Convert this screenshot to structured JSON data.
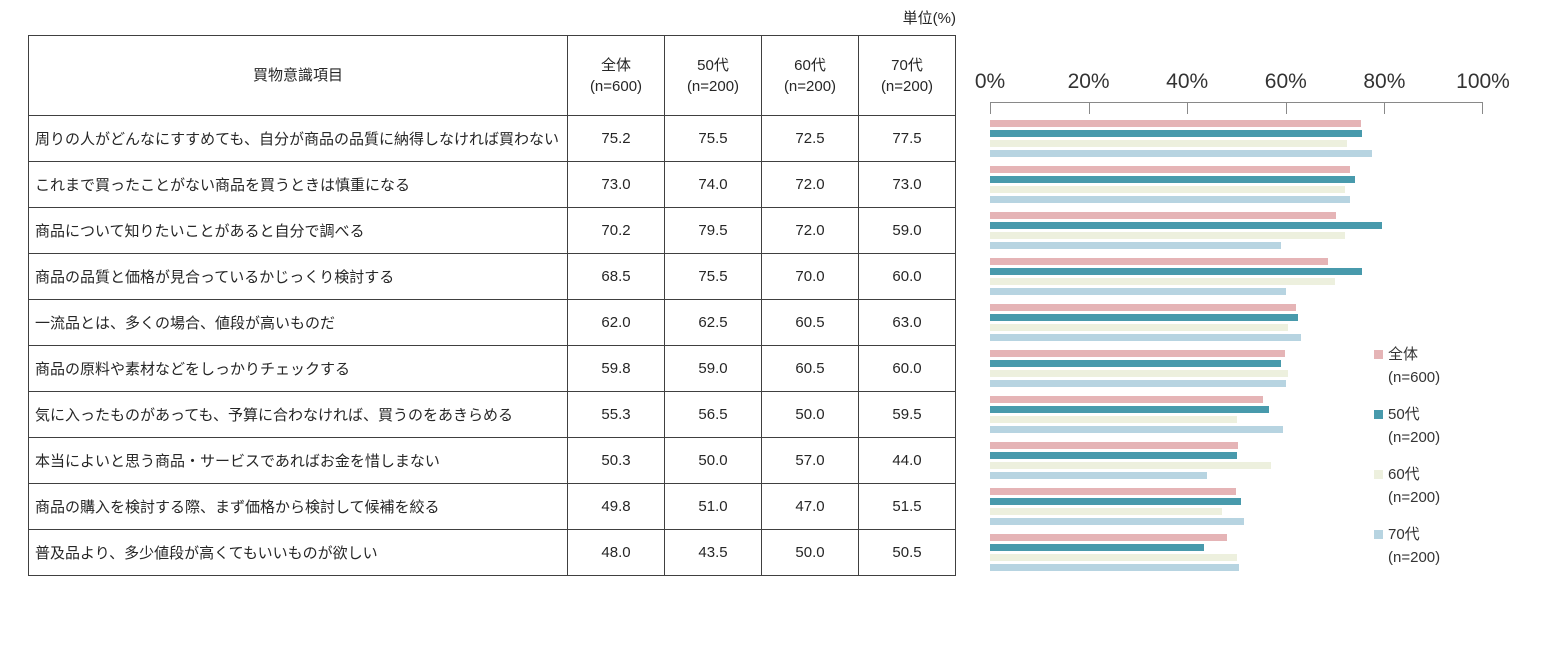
{
  "unit_label": "単位(%)",
  "table": {
    "item_header": "買物意識項目",
    "columns": [
      {
        "label": "全体",
        "n": "(n=600)"
      },
      {
        "label": "50代",
        "n": "(n=200)"
      },
      {
        "label": "60代",
        "n": "(n=200)"
      },
      {
        "label": "70代",
        "n": "(n=200)"
      }
    ],
    "rows": [
      {
        "label": "周りの人がどんなにすすめても、自分が商品の品質に納得しなければ買わない",
        "values": [
          "75.2",
          "75.5",
          "72.5",
          "77.5"
        ]
      },
      {
        "label": "これまで買ったことがない商品を買うときは慎重になる",
        "values": [
          "73.0",
          "74.0",
          "72.0",
          "73.0"
        ]
      },
      {
        "label": "商品について知りたいことがあると自分で調べる",
        "values": [
          "70.2",
          "79.5",
          "72.0",
          "59.0"
        ]
      },
      {
        "label": "商品の品質と価格が見合っているかじっくり検討する",
        "values": [
          "68.5",
          "75.5",
          "70.0",
          "60.0"
        ]
      },
      {
        "label": "一流品とは、多くの場合、値段が高いものだ",
        "values": [
          "62.0",
          "62.5",
          "60.5",
          "63.0"
        ]
      },
      {
        "label": "商品の原料や素材などをしっかりチェックする",
        "values": [
          "59.8",
          "59.0",
          "60.5",
          "60.0"
        ]
      },
      {
        "label": "気に入ったものがあっても、予算に合わなければ、買うのをあきらめる",
        "values": [
          "55.3",
          "56.5",
          "50.0",
          "59.5"
        ]
      },
      {
        "label": "本当によいと思う商品・サービスであればお金を惜しまない",
        "values": [
          "50.3",
          "50.0",
          "57.0",
          "44.0"
        ]
      },
      {
        "label": "商品の購入を検討する際、まず価格から検討して候補を絞る",
        "values": [
          "49.8",
          "51.0",
          "47.0",
          "51.5"
        ]
      },
      {
        "label": "普及品より、多少値段が高くてもいいものが欲しい",
        "values": [
          "48.0",
          "43.5",
          "50.0",
          "50.5"
        ]
      }
    ]
  },
  "chart_data": {
    "type": "bar",
    "orientation": "horizontal",
    "title": "",
    "xlabel": "単位(%)",
    "xlim": [
      0,
      100
    ],
    "tick_labels": [
      "0%",
      "20%",
      "40%",
      "60%",
      "80%",
      "100%"
    ],
    "grid": false,
    "legend_position": "right",
    "categories": [
      "周りの人がどんなにすすめても、自分が商品の品質に納得しなければ買わない",
      "これまで買ったことがない商品を買うときは慎重になる",
      "商品について知りたいことがあると自分で調べる",
      "商品の品質と価格が見合っているかじっくり検討する",
      "一流品とは、多くの場合、値段が高いものだ",
      "商品の原料や素材などをしっかりチェックする",
      "気に入ったものがあっても、予算に合わなければ、買うのをあきらめる",
      "本当によいと思う商品・サービスであればお金を惜しまない",
      "商品の購入を検討する際、まず価格から検討して候補を絞る",
      "普及品より、多少値段が高くてもいいものが欲しい"
    ],
    "series": [
      {
        "name": "全体",
        "n": "(n=600)",
        "color": "#e5b4b6",
        "values": [
          75.2,
          73.0,
          70.2,
          68.5,
          62.0,
          59.8,
          55.3,
          50.3,
          49.8,
          48.0
        ]
      },
      {
        "name": "50代",
        "n": "(n=200)",
        "color": "#489aac",
        "values": [
          75.5,
          74.0,
          79.5,
          75.5,
          62.5,
          59.0,
          56.5,
          50.0,
          51.0,
          43.5
        ]
      },
      {
        "name": "60代",
        "n": "(n=200)",
        "color": "#edf0de",
        "values": [
          72.5,
          72.0,
          72.0,
          70.0,
          60.5,
          60.5,
          50.0,
          57.0,
          47.0,
          50.0
        ]
      },
      {
        "name": "70代",
        "n": "(n=200)",
        "color": "#b7d4e1",
        "values": [
          77.5,
          73.0,
          59.0,
          60.0,
          63.0,
          60.0,
          59.5,
          44.0,
          51.5,
          50.5
        ]
      }
    ]
  }
}
